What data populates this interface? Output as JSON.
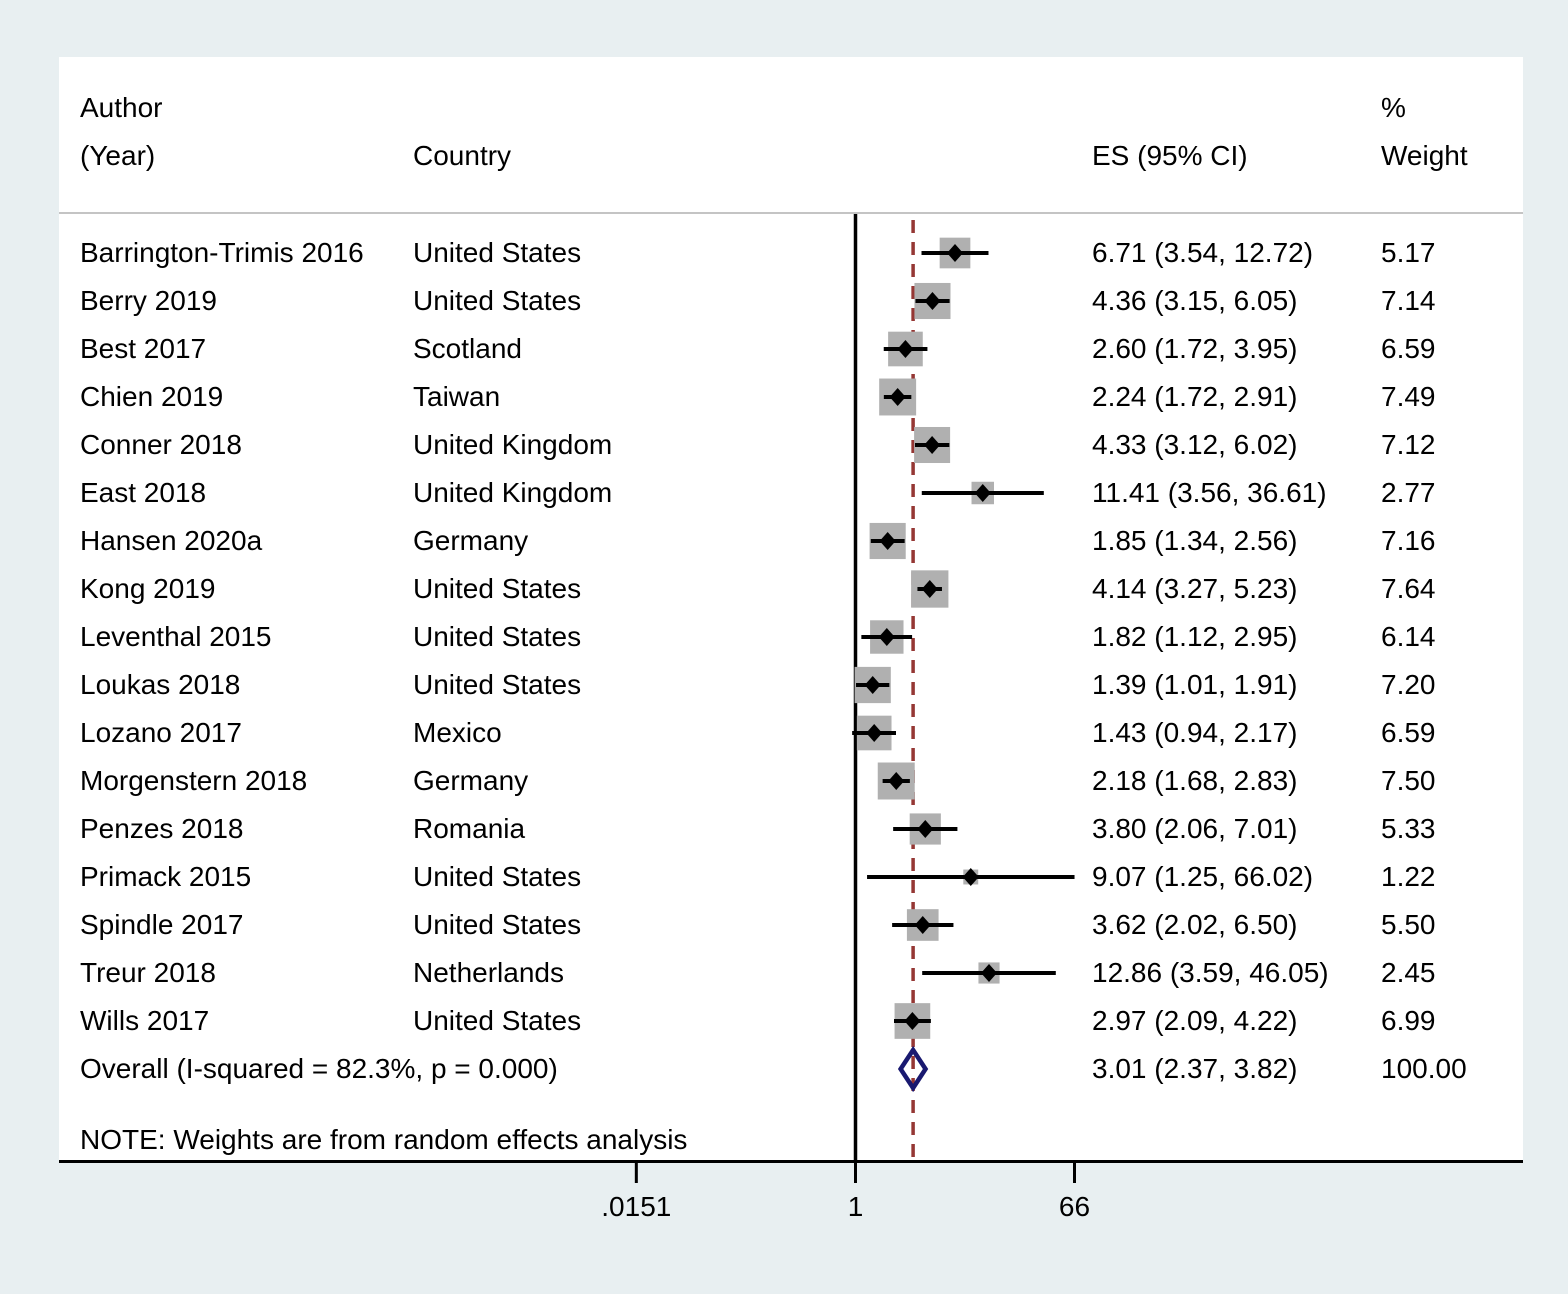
{
  "header": {
    "col_author_line1": "Author",
    "col_author_line2": "(Year)",
    "col_country": "Country",
    "col_es": "ES (95% CI)",
    "col_weight_line1": "%",
    "col_weight_line2": "Weight"
  },
  "note": "NOTE: Weights are from random effects analysis",
  "colors": {
    "background": "#e8eff1",
    "panel": "#ffffff",
    "header_rule": "#c4c4c4",
    "axis": "#000000",
    "ci_line": "#000000",
    "square": "#b0b0b0",
    "point_marker": "#000000",
    "ref_line": "#000000",
    "overall_dashed_line": "#953734",
    "diamond_outline": "#191970"
  },
  "chart_data": {
    "type": "forest",
    "x_scale": "log",
    "x_ticks": [
      0.0151,
      1,
      66
    ],
    "x_tick_labels": [
      ".0151",
      "1",
      "66"
    ],
    "reference_value": 1,
    "overall_estimate_line": 3.01,
    "studies": [
      {
        "author": "Barrington-Trimis 2016",
        "country": "United States",
        "es": 6.71,
        "lo": 3.54,
        "hi": 12.72,
        "es_label": "6.71 (3.54, 12.72)",
        "weight": 5.17,
        "weight_label": "5.17"
      },
      {
        "author": "Berry 2019",
        "country": "United States",
        "es": 4.36,
        "lo": 3.15,
        "hi": 6.05,
        "es_label": "4.36 (3.15, 6.05)",
        "weight": 7.14,
        "weight_label": "7.14"
      },
      {
        "author": "Best 2017",
        "country": "Scotland",
        "es": 2.6,
        "lo": 1.72,
        "hi": 3.95,
        "es_label": "2.60 (1.72, 3.95)",
        "weight": 6.59,
        "weight_label": "6.59"
      },
      {
        "author": "Chien 2019",
        "country": "Taiwan",
        "es": 2.24,
        "lo": 1.72,
        "hi": 2.91,
        "es_label": "2.24 (1.72, 2.91)",
        "weight": 7.49,
        "weight_label": "7.49"
      },
      {
        "author": "Conner 2018",
        "country": "United Kingdom",
        "es": 4.33,
        "lo": 3.12,
        "hi": 6.02,
        "es_label": "4.33 (3.12, 6.02)",
        "weight": 7.12,
        "weight_label": "7.12"
      },
      {
        "author": "East 2018",
        "country": "United Kingdom",
        "es": 11.41,
        "lo": 3.56,
        "hi": 36.61,
        "es_label": "11.41 (3.56, 36.61)",
        "weight": 2.77,
        "weight_label": "2.77"
      },
      {
        "author": "Hansen 2020a",
        "country": "Germany",
        "es": 1.85,
        "lo": 1.34,
        "hi": 2.56,
        "es_label": "1.85 (1.34, 2.56)",
        "weight": 7.16,
        "weight_label": "7.16"
      },
      {
        "author": "Kong 2019",
        "country": "United States",
        "es": 4.14,
        "lo": 3.27,
        "hi": 5.23,
        "es_label": "4.14 (3.27, 5.23)",
        "weight": 7.64,
        "weight_label": "7.64"
      },
      {
        "author": "Leventhal 2015",
        "country": "United States",
        "es": 1.82,
        "lo": 1.12,
        "hi": 2.95,
        "es_label": "1.82 (1.12, 2.95)",
        "weight": 6.14,
        "weight_label": "6.14"
      },
      {
        "author": "Loukas 2018",
        "country": "United States",
        "es": 1.39,
        "lo": 1.01,
        "hi": 1.91,
        "es_label": "1.39 (1.01, 1.91)",
        "weight": 7.2,
        "weight_label": "7.20"
      },
      {
        "author": "Lozano 2017",
        "country": "Mexico",
        "es": 1.43,
        "lo": 0.94,
        "hi": 2.17,
        "es_label": "1.43 (0.94, 2.17)",
        "weight": 6.59,
        "weight_label": "6.59"
      },
      {
        "author": "Morgenstern 2018",
        "country": "Germany",
        "es": 2.18,
        "lo": 1.68,
        "hi": 2.83,
        "es_label": "2.18 (1.68, 2.83)",
        "weight": 7.5,
        "weight_label": "7.50"
      },
      {
        "author": "Penzes 2018",
        "country": "Romania",
        "es": 3.8,
        "lo": 2.06,
        "hi": 7.01,
        "es_label": "3.80 (2.06, 7.01)",
        "weight": 5.33,
        "weight_label": "5.33"
      },
      {
        "author": "Primack 2015",
        "country": "United States",
        "es": 9.07,
        "lo": 1.25,
        "hi": 66.02,
        "es_label": "9.07 (1.25, 66.02)",
        "weight": 1.22,
        "weight_label": "1.22"
      },
      {
        "author": "Spindle 2017",
        "country": "United States",
        "es": 3.62,
        "lo": 2.02,
        "hi": 6.5,
        "es_label": "3.62 (2.02, 6.50)",
        "weight": 5.5,
        "weight_label": "5.50"
      },
      {
        "author": "Treur 2018",
        "country": "Netherlands",
        "es": 12.86,
        "lo": 3.59,
        "hi": 46.05,
        "es_label": "12.86 (3.59, 46.05)",
        "weight": 2.45,
        "weight_label": "2.45"
      },
      {
        "author": "Wills 2017",
        "country": "United States",
        "es": 2.97,
        "lo": 2.09,
        "hi": 4.22,
        "es_label": "2.97 (2.09, 4.22)",
        "weight": 6.99,
        "weight_label": "6.99"
      }
    ],
    "overall": {
      "label": "Overall  (I-squared = 82.3%, p = 0.000)",
      "es": 3.01,
      "lo": 2.37,
      "hi": 3.82,
      "es_label": "3.01 (2.37, 3.82)",
      "weight_label": "100.00"
    }
  }
}
